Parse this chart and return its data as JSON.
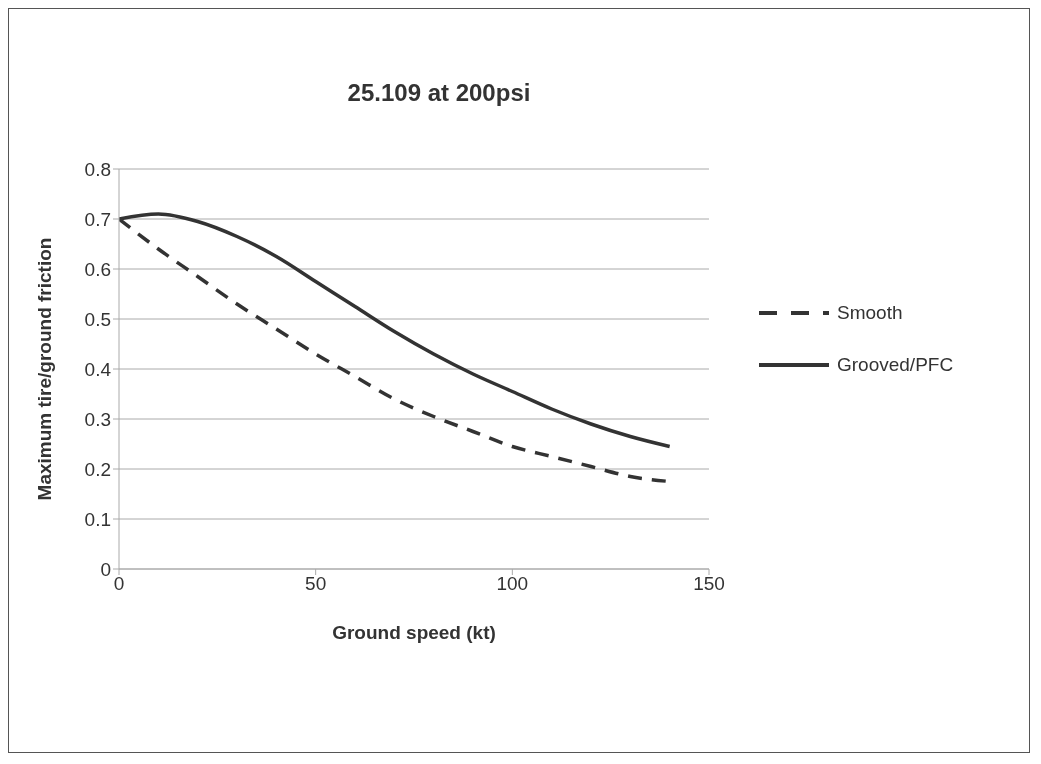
{
  "chart_data": {
    "type": "line",
    "title": "25.109 at 200psi",
    "xlabel": "Ground speed (kt)",
    "ylabel": "Maximum tire/ground friction",
    "x": [
      0,
      10,
      20,
      30,
      40,
      50,
      60,
      70,
      80,
      90,
      100,
      110,
      120,
      130,
      140
    ],
    "series": [
      {
        "name": "Smooth",
        "color": "#333333",
        "line_style": "dashed",
        "values": [
          0.7,
          0.64,
          0.585,
          0.53,
          0.48,
          0.43,
          0.385,
          0.34,
          0.305,
          0.275,
          0.245,
          0.225,
          0.205,
          0.185,
          0.175
        ]
      },
      {
        "name": "Grooved/PFC",
        "color": "#333333",
        "line_style": "solid",
        "values": [
          0.7,
          0.71,
          0.695,
          0.665,
          0.625,
          0.575,
          0.525,
          0.475,
          0.43,
          0.39,
          0.355,
          0.32,
          0.29,
          0.265,
          0.245
        ]
      }
    ],
    "xlim": [
      0,
      150
    ],
    "xticks": [
      0,
      50,
      100,
      150
    ],
    "ylim": [
      0,
      0.8
    ],
    "yticks": [
      0,
      0.1,
      0.2,
      0.3,
      0.4,
      0.5,
      0.6,
      0.7,
      0.8
    ],
    "grid": "y",
    "legend": "right"
  }
}
